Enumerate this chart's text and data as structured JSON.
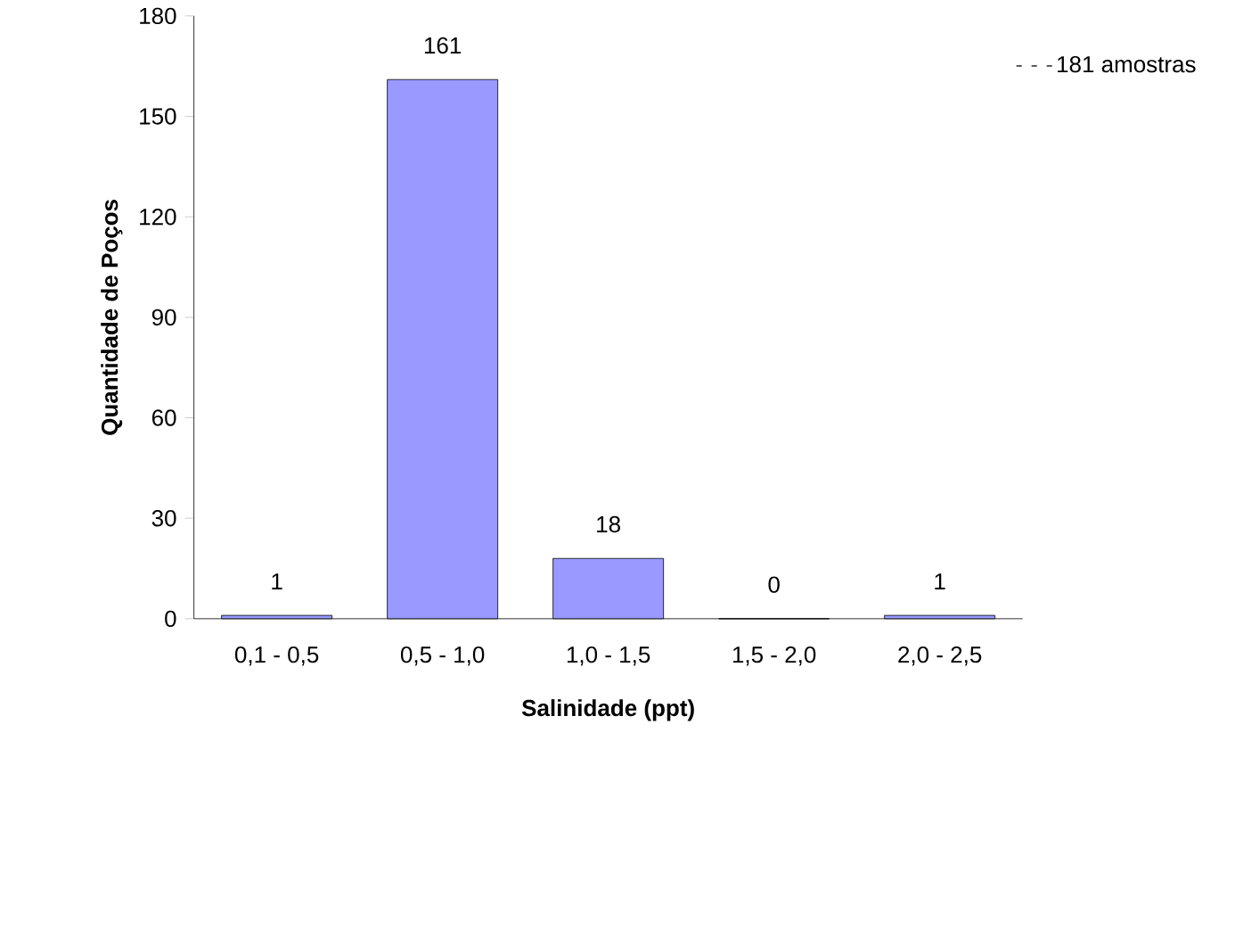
{
  "chart_data": {
    "type": "bar",
    "xlabel": "Salinidade (ppt)",
    "ylabel": "Quantidade de Poços",
    "categories": [
      "0,1 - 0,5",
      "0,5 - 1,0",
      "1,0 - 1,5",
      "1,5 - 2,0",
      "2,0 - 2,5"
    ],
    "series": [
      {
        "name": "181 amostras",
        "color": "#9999ff",
        "values": [
          1,
          161,
          18,
          0,
          1
        ]
      }
    ],
    "ylim": [
      0,
      180
    ],
    "yticks": [
      0,
      30,
      60,
      90,
      120,
      150,
      180
    ],
    "data_labels": true,
    "grid": false,
    "legend": "top right"
  }
}
